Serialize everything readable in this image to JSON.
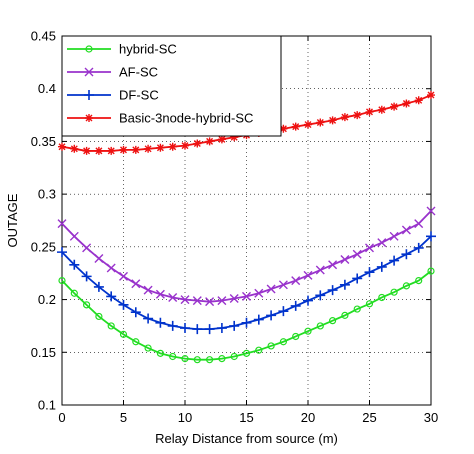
{
  "chart_data": {
    "type": "line",
    "title": "",
    "xlabel": "Relay Distance from source (m)",
    "ylabel": "OUTAGE",
    "xlim": [
      0,
      30
    ],
    "ylim": [
      0.1,
      0.45
    ],
    "grid": true,
    "legend_position": "top-left",
    "xticks": [
      0,
      5,
      10,
      15,
      20,
      25,
      30
    ],
    "yticks": [
      0.1,
      0.15,
      0.2,
      0.25,
      0.3,
      0.35,
      0.4,
      0.45
    ],
    "x": [
      0,
      1,
      2,
      3,
      4,
      5,
      6,
      7,
      8,
      9,
      10,
      11,
      12,
      13,
      14,
      15,
      16,
      17,
      18,
      19,
      20,
      21,
      22,
      23,
      24,
      25,
      26,
      27,
      28,
      29,
      30
    ],
    "series": [
      {
        "name": "hybrid-SC",
        "color": "#22dd22",
        "marker": "circle",
        "values": [
          0.218,
          0.206,
          0.195,
          0.184,
          0.175,
          0.167,
          0.16,
          0.154,
          0.149,
          0.146,
          0.144,
          0.143,
          0.143,
          0.144,
          0.146,
          0.149,
          0.152,
          0.156,
          0.16,
          0.165,
          0.17,
          0.175,
          0.18,
          0.185,
          0.191,
          0.196,
          0.202,
          0.207,
          0.213,
          0.218,
          0.227
        ]
      },
      {
        "name": "AF-SC",
        "color": "#9933cc",
        "marker": "x",
        "values": [
          0.272,
          0.26,
          0.249,
          0.239,
          0.23,
          0.222,
          0.215,
          0.209,
          0.205,
          0.202,
          0.2,
          0.199,
          0.198,
          0.199,
          0.201,
          0.203,
          0.206,
          0.21,
          0.214,
          0.218,
          0.223,
          0.228,
          0.233,
          0.238,
          0.243,
          0.249,
          0.254,
          0.26,
          0.266,
          0.272,
          0.284
        ]
      },
      {
        "name": "DF-SC",
        "color": "#0033cc",
        "marker": "plus",
        "values": [
          0.245,
          0.233,
          0.222,
          0.212,
          0.203,
          0.195,
          0.188,
          0.182,
          0.178,
          0.175,
          0.173,
          0.172,
          0.172,
          0.173,
          0.175,
          0.178,
          0.181,
          0.185,
          0.189,
          0.194,
          0.199,
          0.204,
          0.209,
          0.214,
          0.22,
          0.226,
          0.231,
          0.237,
          0.243,
          0.249,
          0.26
        ]
      },
      {
        "name": "Basic-3node-hybrid-SC",
        "color": "#ee1111",
        "marker": "star",
        "values": [
          0.345,
          0.343,
          0.341,
          0.341,
          0.341,
          0.342,
          0.342,
          0.343,
          0.344,
          0.345,
          0.346,
          0.348,
          0.35,
          0.352,
          0.354,
          0.356,
          0.358,
          0.36,
          0.362,
          0.364,
          0.366,
          0.368,
          0.37,
          0.373,
          0.375,
          0.378,
          0.38,
          0.383,
          0.386,
          0.389,
          0.394
        ]
      }
    ]
  }
}
